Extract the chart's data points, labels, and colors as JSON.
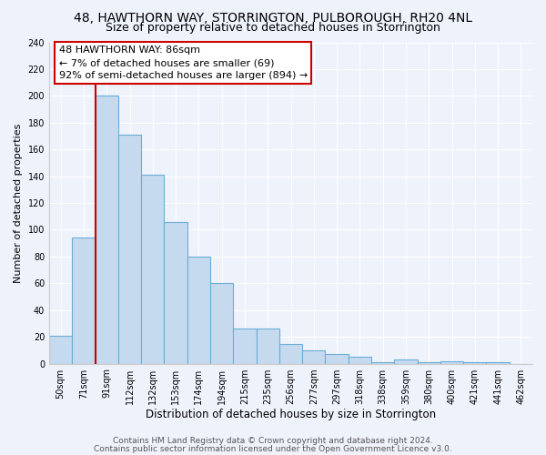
{
  "title": "48, HAWTHORN WAY, STORRINGTON, PULBOROUGH, RH20 4NL",
  "subtitle": "Size of property relative to detached houses in Storrington",
  "xlabel": "Distribution of detached houses by size in Storrington",
  "ylabel": "Number of detached properties",
  "categories": [
    "50sqm",
    "71sqm",
    "91sqm",
    "112sqm",
    "132sqm",
    "153sqm",
    "174sqm",
    "194sqm",
    "215sqm",
    "235sqm",
    "256sqm",
    "277sqm",
    "297sqm",
    "318sqm",
    "338sqm",
    "359sqm",
    "380sqm",
    "400sqm",
    "421sqm",
    "441sqm",
    "462sqm"
  ],
  "values": [
    21,
    94,
    200,
    171,
    141,
    106,
    80,
    60,
    26,
    26,
    15,
    10,
    7,
    5,
    1,
    3,
    1,
    2,
    1,
    1,
    0
  ],
  "bar_color": "#c5d9ef",
  "bar_edge_color": "#6baed6",
  "vline_x_index": 2,
  "vline_color": "#cc0000",
  "ylim": [
    0,
    240
  ],
  "yticks": [
    0,
    20,
    40,
    60,
    80,
    100,
    120,
    140,
    160,
    180,
    200,
    220,
    240
  ],
  "annotation_line1": "48 HAWTHORN WAY: 86sqm",
  "annotation_line2": "← 7% of detached houses are smaller (69)",
  "annotation_line3": "92% of semi-detached houses are larger (894) →",
  "annotation_box_color": "#ffffff",
  "annotation_box_edge": "#cc0000",
  "footer1": "Contains HM Land Registry data © Crown copyright and database right 2024.",
  "footer2": "Contains public sector information licensed under the Open Government Licence v3.0.",
  "background_color": "#eef2fb",
  "grid_color": "#ffffff",
  "title_fontsize": 10,
  "subtitle_fontsize": 9,
  "xlabel_fontsize": 8.5,
  "ylabel_fontsize": 8,
  "tick_fontsize": 7,
  "footer_fontsize": 6.5,
  "annotation_fontsize": 8
}
